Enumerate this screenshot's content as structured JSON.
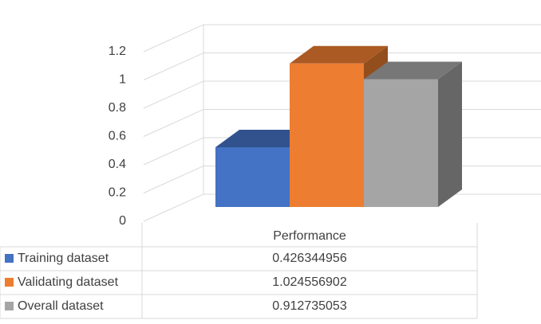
{
  "chart_data": {
    "type": "bar3d",
    "categories": [
      "Performance"
    ],
    "series": [
      {
        "name": "Training dataset",
        "color": "#4472c4",
        "values": [
          0.426344956
        ]
      },
      {
        "name": "Validating dataset",
        "color": "#ed7d31",
        "values": [
          1.024556902
        ]
      },
      {
        "name": "Overall dataset",
        "color": "#a5a5a5",
        "values": [
          0.912735053
        ]
      }
    ],
    "ylim": [
      0,
      1.2
    ],
    "yticks": [
      0,
      0.2,
      0.4,
      0.6,
      0.8,
      1,
      1.2
    ],
    "grid": true,
    "data_table": true
  }
}
